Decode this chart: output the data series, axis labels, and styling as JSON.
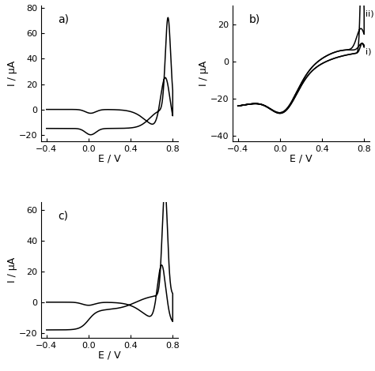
{
  "panel_a": {
    "label": "a)",
    "xlim": [
      -0.45,
      0.85
    ],
    "ylim": [
      -25,
      82
    ],
    "xticks": [
      -0.4,
      0.0,
      0.4,
      0.8
    ],
    "yticks": [
      -20,
      0,
      20,
      40,
      60,
      80
    ],
    "xlabel": "E / V",
    "ylabel": "I / μA"
  },
  "panel_b": {
    "label": "b)",
    "xlim": [
      -0.45,
      0.85
    ],
    "ylim": [
      -43,
      30
    ],
    "xticks": [
      -0.4,
      0.0,
      0.4,
      0.8
    ],
    "yticks": [
      -40,
      -20,
      0,
      20
    ],
    "xlabel": "E / V",
    "ylabel": "I / μA",
    "ann_ii": [
      0.815,
      25.5
    ],
    "ann_i": [
      0.815,
      5.0
    ]
  },
  "panel_c": {
    "label": "c)",
    "xlim": [
      -0.45,
      0.85
    ],
    "ylim": [
      -23,
      65
    ],
    "xticks": [
      -0.4,
      0.0,
      0.4,
      0.8
    ],
    "yticks": [
      -20,
      0,
      20,
      40,
      60
    ],
    "xlabel": "E / V",
    "ylabel": "I / μA"
  },
  "line_color": "#000000",
  "bg_color": "#ffffff",
  "fontsize_label": 9,
  "fontsize_tick": 8,
  "fontsize_panel": 10
}
